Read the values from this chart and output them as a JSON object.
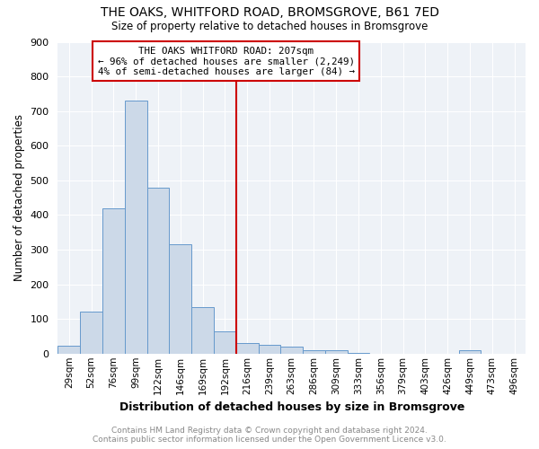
{
  "title": "THE OAKS, WHITFORD ROAD, BROMSGROVE, B61 7ED",
  "subtitle": "Size of property relative to detached houses in Bromsgrove",
  "xlabel": "Distribution of detached houses by size in Bromsgrove",
  "ylabel": "Number of detached properties",
  "categories": [
    "29sqm",
    "52sqm",
    "76sqm",
    "99sqm",
    "122sqm",
    "146sqm",
    "169sqm",
    "192sqm",
    "216sqm",
    "239sqm",
    "263sqm",
    "286sqm",
    "309sqm",
    "333sqm",
    "356sqm",
    "379sqm",
    "403sqm",
    "426sqm",
    "449sqm",
    "473sqm",
    "496sqm"
  ],
  "values": [
    22,
    122,
    418,
    730,
    480,
    315,
    133,
    65,
    30,
    25,
    20,
    10,
    10,
    3,
    0,
    0,
    0,
    0,
    10,
    0,
    0
  ],
  "bar_color": "#ccd9e8",
  "bar_edge_color": "#6699cc",
  "marker_label": "THE OAKS WHITFORD ROAD: 207sqm",
  "annotation_line1": "← 96% of detached houses are smaller (2,249)",
  "annotation_line2": "4% of semi-detached houses are larger (84) →",
  "vline_color": "#cc0000",
  "background_color": "#eef2f7",
  "grid_color": "#ffffff",
  "footer_line1": "Contains HM Land Registry data © Crown copyright and database right 2024.",
  "footer_line2": "Contains public sector information licensed under the Open Government Licence v3.0.",
  "ylim": [
    0,
    900
  ],
  "yticks": [
    0,
    100,
    200,
    300,
    400,
    500,
    600,
    700,
    800,
    900
  ],
  "vline_index": 8
}
